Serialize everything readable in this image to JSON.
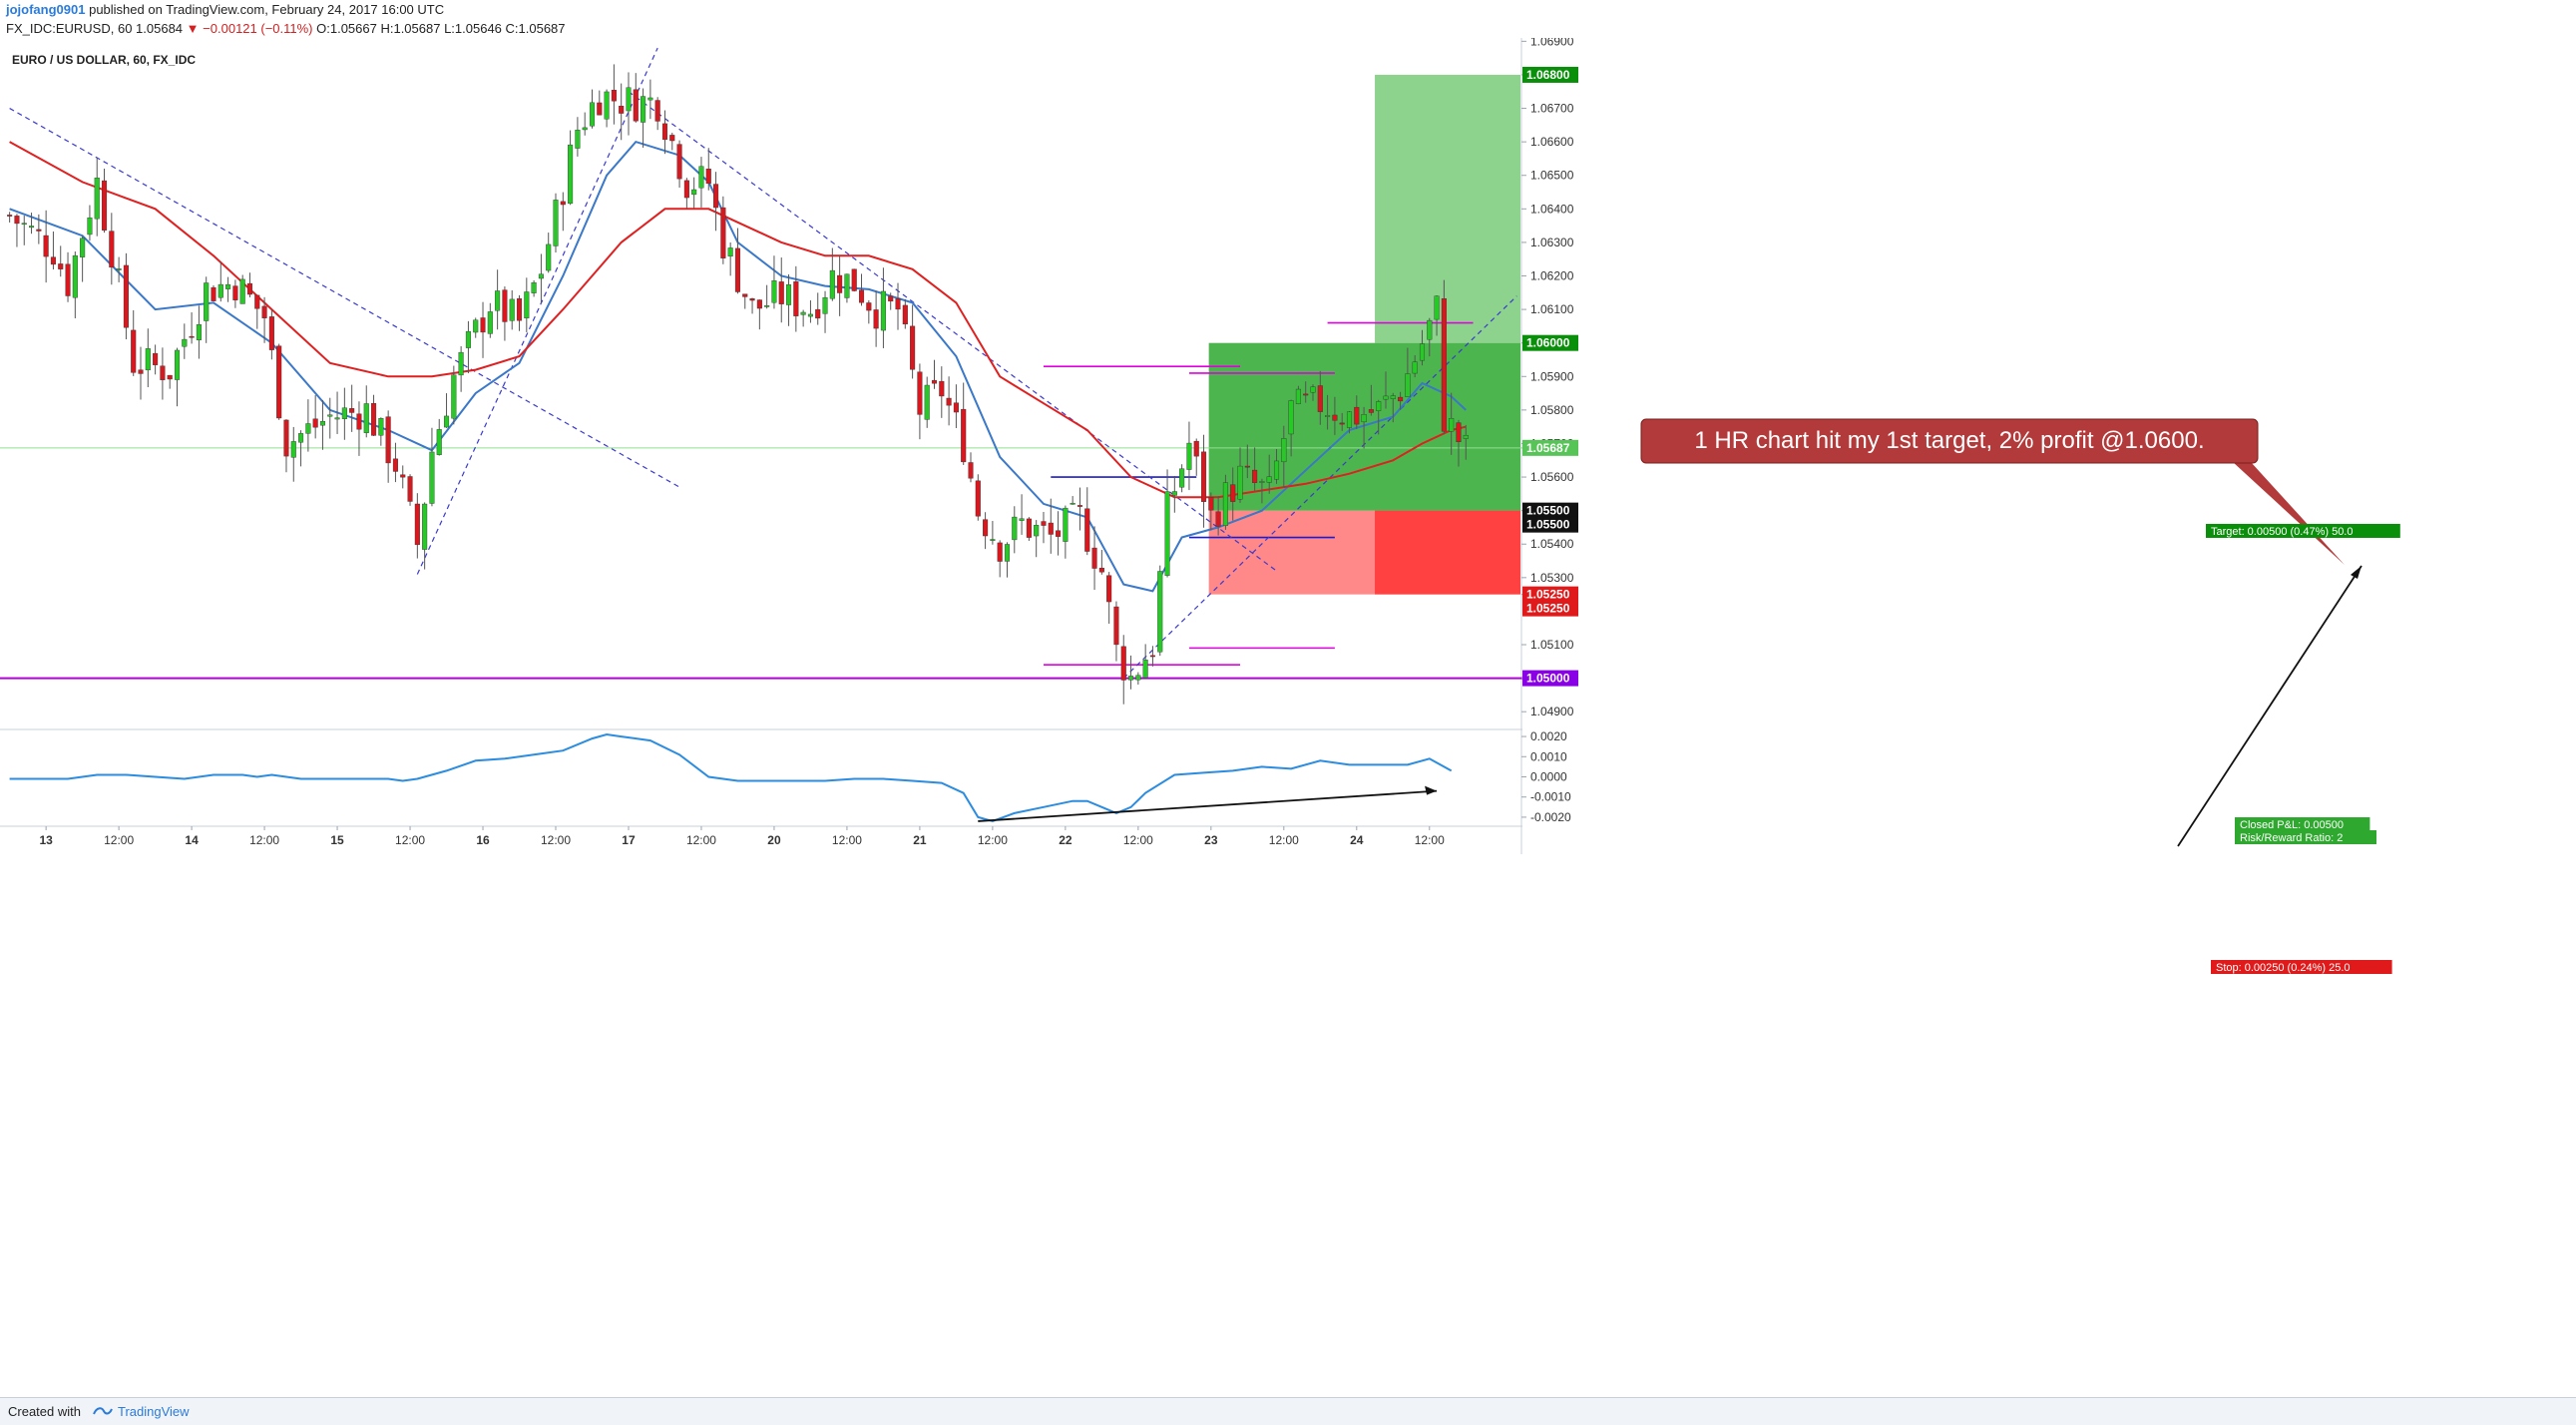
{
  "header": {
    "user": "jojofang0901",
    "published": "published on TradingView.com, February 24, 2017 16:00 UTC",
    "symbol": "FX_IDC:EURUSD, 60",
    "last": "1.05684",
    "change_arrow": "▼",
    "change": "−0.00121 (−0.11%)",
    "ohlc": "O:1.05667 H:1.05687 L:1.05646 C:1.05687"
  },
  "chart_title": "EURO / US DOLLAR, 60, FX_IDC",
  "annotation": "1 HR chart hit my 1st target, 2% profit @1.0600.",
  "position": {
    "target_label": "Target: 0.00500 (0.47%) 50.0",
    "stop_label": "Stop: 0.00250 (0.24%) 25.0",
    "pnl_label": "Closed P&L: 0.00500",
    "rr_label": "Risk/Reward Ratio: 2",
    "entry": 1.055,
    "target": 1.06,
    "stop": 1.0525
  },
  "price_badges": [
    {
      "value": "1.06800",
      "color": "#0a8f0a"
    },
    {
      "value": "1.06000",
      "color": "#0a8f0a"
    },
    {
      "value": "1.05687",
      "color": "#56c456"
    },
    {
      "value": "1.05500",
      "color": "#111111"
    },
    {
      "value": "1.05500",
      "color": "#111111"
    },
    {
      "value": "1.05250",
      "color": "#e01a1a"
    },
    {
      "value": "1.05250",
      "color": "#e01a1a"
    },
    {
      "value": "1.05000",
      "color": "#8a00e6"
    }
  ],
  "chart_data": {
    "type": "candlestick",
    "price_axis": {
      "ylim": [
        1.0485,
        1.0691
      ],
      "ticks": [
        "1.06900",
        "1.06800",
        "1.06700",
        "1.06600",
        "1.06500",
        "1.06400",
        "1.06300",
        "1.06200",
        "1.06100",
        "1.06000",
        "1.05900",
        "1.05800",
        "1.05700",
        "1.05600",
        "1.05500",
        "1.05400",
        "1.05300",
        "1.05250",
        "1.05100",
        "1.05000",
        "1.04900"
      ]
    },
    "oscillator_axis": {
      "ylim": [
        -0.0024,
        0.0023
      ],
      "ticks": [
        "0.0020",
        "0.0010",
        "0.0000",
        "-0.0010",
        "-0.0020"
      ]
    },
    "time_axis": {
      "bars_total": 208,
      "ticks": [
        {
          "bar": 5,
          "label": "13"
        },
        {
          "bar": 15,
          "label": "12:00"
        },
        {
          "bar": 25,
          "label": "14"
        },
        {
          "bar": 35,
          "label": "12:00"
        },
        {
          "bar": 45,
          "label": "15"
        },
        {
          "bar": 55,
          "label": "12:00"
        },
        {
          "bar": 65,
          "label": "16"
        },
        {
          "bar": 75,
          "label": "12:00"
        },
        {
          "bar": 85,
          "label": "17"
        },
        {
          "bar": 95,
          "label": "12:00"
        },
        {
          "bar": 105,
          "label": "20"
        },
        {
          "bar": 115,
          "label": "12:00"
        },
        {
          "bar": 125,
          "label": "21"
        },
        {
          "bar": 135,
          "label": "12:00"
        },
        {
          "bar": 145,
          "label": "22"
        },
        {
          "bar": 155,
          "label": "12:00"
        },
        {
          "bar": 165,
          "label": "23"
        },
        {
          "bar": 175,
          "label": "12:00"
        },
        {
          "bar": 185,
          "label": "24"
        },
        {
          "bar": 195,
          "label": "12:00"
        }
      ]
    },
    "price_path": [
      [
        0,
        1.0638
      ],
      [
        6,
        1.0628
      ],
      [
        8,
        1.0618
      ],
      [
        12,
        1.0648
      ],
      [
        14,
        1.0628
      ],
      [
        17,
        1.0594
      ],
      [
        22,
        1.0592
      ],
      [
        27,
        1.0616
      ],
      [
        31,
        1.0618
      ],
      [
        35,
        1.0608
      ],
      [
        38,
        1.057
      ],
      [
        44,
        1.0578
      ],
      [
        49,
        1.058
      ],
      [
        53,
        1.0564
      ],
      [
        56,
        1.054
      ],
      [
        58,
        1.0568
      ],
      [
        61,
        1.059
      ],
      [
        66,
        1.0612
      ],
      [
        70,
        1.0606
      ],
      [
        73,
        1.0622
      ],
      [
        75,
        1.0638
      ],
      [
        78,
        1.0664
      ],
      [
        81,
        1.0674
      ],
      [
        85,
        1.0672
      ],
      [
        89,
        1.0672
      ],
      [
        93,
        1.0648
      ],
      [
        96,
        1.0648
      ],
      [
        98,
        1.063
      ],
      [
        102,
        1.061
      ],
      [
        106,
        1.0614
      ],
      [
        110,
        1.061
      ],
      [
        113,
        1.062
      ],
      [
        116,
        1.0618
      ],
      [
        119,
        1.061
      ],
      [
        122,
        1.061
      ],
      [
        125,
        1.058
      ],
      [
        128,
        1.0586
      ],
      [
        131,
        1.057
      ],
      [
        133,
        1.055
      ],
      [
        136,
        1.054
      ],
      [
        139,
        1.0546
      ],
      [
        143,
        1.0542
      ],
      [
        147,
        1.0548
      ],
      [
        150,
        1.0532
      ],
      [
        152,
        1.0508
      ],
      [
        154,
        1.05
      ],
      [
        157,
        1.051
      ],
      [
        159,
        1.055
      ],
      [
        162,
        1.057
      ],
      [
        165,
        1.0548
      ],
      [
        169,
        1.056
      ],
      [
        173,
        1.0555
      ],
      [
        176,
        1.058
      ],
      [
        180,
        1.0582
      ],
      [
        184,
        1.0578
      ],
      [
        188,
        1.058
      ],
      [
        191,
        1.0586
      ],
      [
        194,
        1.06
      ],
      [
        196,
        1.061
      ],
      [
        197,
        1.0578
      ],
      [
        200,
        1.0568
      ]
    ],
    "moving_averages": [
      {
        "name": "fast",
        "color": "#3a78c9",
        "points": [
          [
            0,
            1.064
          ],
          [
            10,
            1.0632
          ],
          [
            20,
            1.061
          ],
          [
            28,
            1.0612
          ],
          [
            36,
            1.06
          ],
          [
            44,
            1.058
          ],
          [
            52,
            1.0574
          ],
          [
            58,
            1.0568
          ],
          [
            64,
            1.0585
          ],
          [
            70,
            1.0594
          ],
          [
            76,
            1.062
          ],
          [
            82,
            1.065
          ],
          [
            86,
            1.066
          ],
          [
            92,
            1.0656
          ],
          [
            96,
            1.0648
          ],
          [
            100,
            1.063
          ],
          [
            106,
            1.062
          ],
          [
            112,
            1.0617
          ],
          [
            118,
            1.0616
          ],
          [
            124,
            1.0612
          ],
          [
            130,
            1.0596
          ],
          [
            136,
            1.0566
          ],
          [
            142,
            1.0552
          ],
          [
            148,
            1.0548
          ],
          [
            153,
            1.0528
          ],
          [
            157,
            1.0526
          ],
          [
            161,
            1.0542
          ],
          [
            166,
            1.0545
          ],
          [
            172,
            1.055
          ],
          [
            178,
            1.0562
          ],
          [
            184,
            1.0574
          ],
          [
            190,
            1.0578
          ],
          [
            194,
            1.0588
          ],
          [
            198,
            1.0584
          ],
          [
            200,
            1.058
          ]
        ]
      },
      {
        "name": "slow",
        "color": "#e02020",
        "points": [
          [
            0,
            1.066
          ],
          [
            10,
            1.0648
          ],
          [
            20,
            1.064
          ],
          [
            28,
            1.0626
          ],
          [
            36,
            1.061
          ],
          [
            44,
            1.0594
          ],
          [
            52,
            1.059
          ],
          [
            58,
            1.059
          ],
          [
            64,
            1.0592
          ],
          [
            70,
            1.0596
          ],
          [
            76,
            1.061
          ],
          [
            84,
            1.063
          ],
          [
            90,
            1.064
          ],
          [
            96,
            1.064
          ],
          [
            100,
            1.0636
          ],
          [
            106,
            1.063
          ],
          [
            112,
            1.0626
          ],
          [
            118,
            1.0626
          ],
          [
            124,
            1.0622
          ],
          [
            130,
            1.0612
          ],
          [
            136,
            1.059
          ],
          [
            142,
            1.0582
          ],
          [
            148,
            1.0574
          ],
          [
            154,
            1.056
          ],
          [
            160,
            1.0554
          ],
          [
            166,
            1.0554
          ],
          [
            172,
            1.0556
          ],
          [
            178,
            1.0558
          ],
          [
            184,
            1.0561
          ],
          [
            190,
            1.0565
          ],
          [
            194,
            1.057
          ],
          [
            198,
            1.0574
          ],
          [
            200,
            1.0575
          ]
        ]
      }
    ],
    "oscillator": {
      "color": "#2b8ce0",
      "points": [
        [
          0,
          -0.0001
        ],
        [
          4,
          -0.0001
        ],
        [
          8,
          -0.0001
        ],
        [
          12,
          0.0001
        ],
        [
          16,
          0.0001
        ],
        [
          20,
          0.0
        ],
        [
          24,
          -0.0001
        ],
        [
          28,
          0.0001
        ],
        [
          32,
          0.0001
        ],
        [
          34,
          0.0
        ],
        [
          36,
          0.0001
        ],
        [
          40,
          -0.0001
        ],
        [
          44,
          -0.0001
        ],
        [
          48,
          -0.0001
        ],
        [
          52,
          -0.0001
        ],
        [
          54,
          -0.0002
        ],
        [
          56,
          -0.0001
        ],
        [
          60,
          0.0003
        ],
        [
          64,
          0.0008
        ],
        [
          68,
          0.0009
        ],
        [
          72,
          0.0011
        ],
        [
          76,
          0.0013
        ],
        [
          80,
          0.0019
        ],
        [
          82,
          0.0021
        ],
        [
          84,
          0.002
        ],
        [
          88,
          0.0018
        ],
        [
          92,
          0.0011
        ],
        [
          96,
          0.0
        ],
        [
          100,
          -0.0002
        ],
        [
          104,
          -0.0002
        ],
        [
          108,
          -0.0002
        ],
        [
          112,
          -0.0002
        ],
        [
          116,
          -0.0001
        ],
        [
          120,
          -0.0001
        ],
        [
          124,
          -0.0002
        ],
        [
          128,
          -0.0003
        ],
        [
          131,
          -0.0008
        ],
        [
          133,
          -0.002
        ],
        [
          135,
          -0.0022
        ],
        [
          138,
          -0.0018
        ],
        [
          142,
          -0.0015
        ],
        [
          146,
          -0.0012
        ],
        [
          148,
          -0.0012
        ],
        [
          150,
          -0.0015
        ],
        [
          152,
          -0.0018
        ],
        [
          154,
          -0.0015
        ],
        [
          156,
          -0.0008
        ],
        [
          160,
          0.0001
        ],
        [
          164,
          0.0002
        ],
        [
          168,
          0.0003
        ],
        [
          172,
          0.0005
        ],
        [
          176,
          0.0004
        ],
        [
          180,
          0.0008
        ],
        [
          184,
          0.0006
        ],
        [
          188,
          0.0006
        ],
        [
          192,
          0.0006
        ],
        [
          195,
          0.0009
        ],
        [
          198,
          0.0003
        ]
      ]
    },
    "levels": [
      {
        "price": 1.05,
        "color": "#b000e0",
        "style": "solid"
      },
      {
        "price": 1.05687,
        "color": "#8fe08f",
        "style": "solid"
      }
    ]
  }
}
